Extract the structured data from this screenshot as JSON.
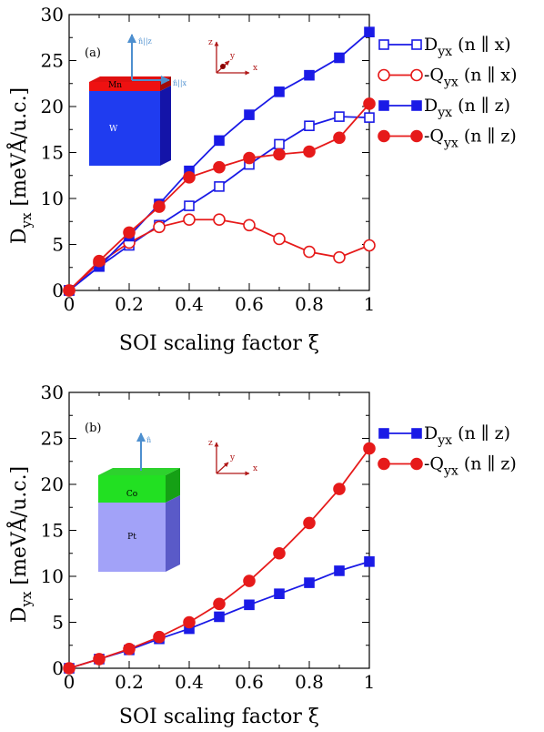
{
  "chart_data": [
    {
      "type": "line",
      "panel_label": "(a)",
      "xlabel": "SOI scaling factor ξ",
      "ylabel_main": "D",
      "ylabel_sub": "yx",
      "ylabel_unit": " [meVÅ/u.c.]",
      "xlim": [
        0,
        1
      ],
      "ylim": [
        0,
        30
      ],
      "x_ticks": [
        "0",
        "0.2",
        "0.4",
        "0.6",
        "0.8",
        "1"
      ],
      "y_ticks": [
        "0",
        "5",
        "10",
        "15",
        "20",
        "25",
        "30"
      ],
      "grid": false,
      "legend_position": "outside-right",
      "x": [
        0,
        0.1,
        0.2,
        0.3,
        0.4,
        0.5,
        0.6,
        0.7,
        0.8,
        0.9,
        1.0
      ],
      "series": [
        {
          "name_main": "D",
          "name_sub": "yx",
          "name_rest": " (n ∥ x)",
          "color": "#1a1ae6",
          "marker": "square",
          "filled": false,
          "values": [
            0,
            2.6,
            4.9,
            7.1,
            9.2,
            11.3,
            13.7,
            15.9,
            17.9,
            18.9,
            18.8
          ]
        },
        {
          "name_main": "-Q",
          "name_sub": "yx",
          "name_rest": " (n ∥ x)",
          "color": "#e61a1a",
          "marker": "circle",
          "filled": false,
          "values": [
            0,
            3.0,
            5.2,
            6.9,
            7.7,
            7.7,
            7.1,
            5.6,
            4.2,
            3.6,
            4.9
          ]
        },
        {
          "name_main": "D",
          "name_sub": "yx",
          "name_rest": " (n ∥ z)",
          "color": "#1a1ae6",
          "marker": "square",
          "filled": true,
          "values": [
            0,
            2.6,
            5.9,
            9.4,
            13.0,
            16.3,
            19.1,
            21.6,
            23.4,
            25.3,
            28.1
          ]
        },
        {
          "name_main": "-Q",
          "name_sub": "yx",
          "name_rest": " (n ∥ z)",
          "color": "#e61a1a",
          "marker": "circle",
          "filled": true,
          "values": [
            0,
            3.2,
            6.3,
            9.1,
            12.3,
            13.4,
            14.4,
            14.8,
            15.1,
            16.6,
            20.3
          ]
        }
      ],
      "inset": {
        "top_layer": "Mn",
        "bulk": "W",
        "normal_z": "n̂||z",
        "normal_x": "n̂||x"
      },
      "axes_glyph": {
        "x": "x",
        "y": "y",
        "z": "z"
      }
    },
    {
      "type": "line",
      "panel_label": "(b)",
      "xlabel": "SOI scaling factor ξ",
      "ylabel_main": "D",
      "ylabel_sub": "yx",
      "ylabel_unit": " [meVÅ/u.c.]",
      "xlim": [
        0,
        1
      ],
      "ylim": [
        0,
        30
      ],
      "x_ticks": [
        "0",
        "0.2",
        "0.4",
        "0.6",
        "0.8",
        "1"
      ],
      "y_ticks": [
        "0",
        "5",
        "10",
        "15",
        "20",
        "25",
        "30"
      ],
      "grid": false,
      "legend_position": "outside-right",
      "x": [
        0,
        0.1,
        0.2,
        0.3,
        0.4,
        0.5,
        0.6,
        0.7,
        0.8,
        0.9,
        1.0
      ],
      "series": [
        {
          "name_main": "D",
          "name_sub": "yx",
          "name_rest": " (n ∥ z)",
          "color": "#1a1ae6",
          "marker": "square",
          "filled": true,
          "values": [
            0,
            1.0,
            2.0,
            3.2,
            4.3,
            5.6,
            6.9,
            8.1,
            9.3,
            10.6,
            11.6
          ]
        },
        {
          "name_main": "-Q",
          "name_sub": "yx",
          "name_rest": " (n ∥ z)",
          "color": "#e61a1a",
          "marker": "circle",
          "filled": true,
          "values": [
            0,
            1.0,
            2.1,
            3.4,
            5.0,
            7.0,
            9.5,
            12.5,
            15.8,
            19.5,
            23.9
          ]
        }
      ],
      "inset": {
        "top_layer": "Co",
        "bulk": "Pt",
        "normal": "n̂"
      },
      "axes_glyph": {
        "x": "x",
        "y": "y",
        "z": "z"
      }
    }
  ]
}
